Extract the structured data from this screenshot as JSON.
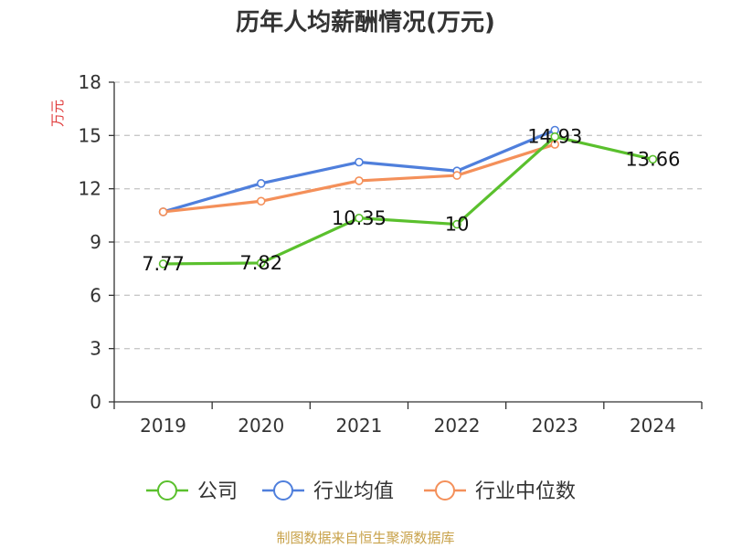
{
  "chart_data": {
    "type": "line",
    "title": "历年人均薪酬情况(万元)",
    "ylabel": "万元",
    "xlabel": "",
    "categories": [
      "2019",
      "2020",
      "2021",
      "2022",
      "2023",
      "2024"
    ],
    "ylim": [
      0,
      18
    ],
    "yticks": [
      0,
      3,
      6,
      9,
      12,
      15,
      18
    ],
    "grid": true,
    "legend_position": "bottom",
    "series": [
      {
        "name": "公司",
        "color": "#5ac02d",
        "values": [
          7.77,
          7.82,
          10.35,
          10,
          14.93,
          13.66
        ],
        "labels": [
          "7.77",
          "7.82",
          "10.35",
          "10",
          "14.93",
          "13.66"
        ]
      },
      {
        "name": "行业均值",
        "color": "#4f7fdc",
        "values": [
          10.7,
          12.3,
          13.5,
          13.0,
          15.3,
          null
        ]
      },
      {
        "name": "行业中位数",
        "color": "#f4905a",
        "values": [
          10.7,
          11.3,
          12.45,
          12.75,
          14.5,
          null
        ]
      }
    ]
  },
  "source": "制图数据来自恒生聚源数据库"
}
